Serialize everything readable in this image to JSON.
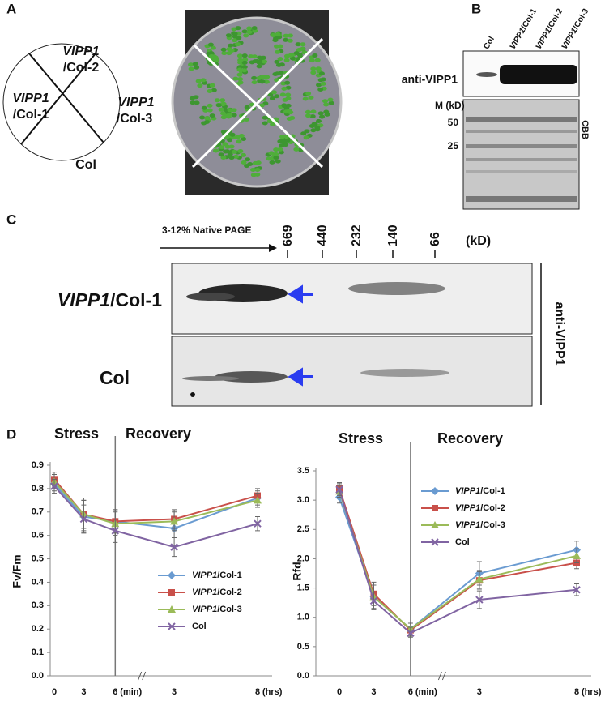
{
  "panel_a": {
    "letter": "A",
    "sectors": [
      {
        "gene": "VIPP1",
        "line": "/Col-2"
      },
      {
        "gene": "VIPP1",
        "line": "/Col-1"
      },
      {
        "gene": "VIPP1",
        "line": "/Col-3"
      },
      {
        "line": "Col"
      }
    ]
  },
  "panel_b": {
    "letter": "B",
    "lanes": [
      "Col",
      "VIPP1/Col-1",
      "VIPP1/Col-2",
      "VIPP1/Col-3"
    ],
    "antibody": "anti-VIPP1",
    "marker_title": "M (kD)",
    "markers": [
      50,
      25
    ],
    "stain": "CBB"
  },
  "panel_c": {
    "letter": "C",
    "gel": "3-12% Native PAGE",
    "markers": [
      669,
      440,
      232,
      140,
      66
    ],
    "unit": "(kD)",
    "rows": [
      "VIPP1/Col-1",
      "Col"
    ],
    "antibody": "anti-VIPP1"
  },
  "panel_d": {
    "letter": "D"
  },
  "chart_data": [
    {
      "type": "line",
      "phases": [
        {
          "label": "Stress",
          "color": "#e0402a"
        },
        {
          "label": "Recovery",
          "color": "#3a3ad8"
        }
      ],
      "categories": [
        "0",
        "3",
        "6",
        "3",
        "8"
      ],
      "x_units": [
        "(min)",
        "(hrs)"
      ],
      "ylabel": "Fv/Fm",
      "ylim": [
        0,
        0.9
      ],
      "yticks": [
        {
          "value": 0,
          "label": "0.0"
        },
        0.1,
        0.2,
        0.3,
        0.4,
        0.5,
        0.6,
        0.7,
        0.8,
        0.9
      ],
      "series": [
        {
          "name": "VIPP1/Col-1",
          "color": "#6a9bd1",
          "marker": "diamond",
          "values": [
            0.82,
            0.68,
            0.66,
            0.63,
            0.76
          ],
          "errors": [
            0.03,
            0.07,
            0.05,
            0.04,
            0.03
          ]
        },
        {
          "name": "VIPP1/Col-2",
          "color": "#c9504a",
          "marker": "square",
          "values": [
            0.84,
            0.69,
            0.66,
            0.67,
            0.77
          ],
          "errors": [
            0.03,
            0.07,
            0.05,
            0.04,
            0.03
          ]
        },
        {
          "name": "VIPP1/Col-3",
          "color": "#9bbb59",
          "marker": "triangle",
          "values": [
            0.83,
            0.69,
            0.65,
            0.66,
            0.75
          ],
          "errors": [
            0.03,
            0.06,
            0.05,
            0.04,
            0.03
          ]
        },
        {
          "name": "Col",
          "color": "#8064a2",
          "marker": "x",
          "values": [
            0.81,
            0.67,
            0.62,
            0.55,
            0.65
          ],
          "errors": [
            0.03,
            0.06,
            0.05,
            0.04,
            0.03
          ]
        }
      ]
    },
    {
      "type": "line",
      "phases": [
        {
          "label": "Stress",
          "color": "#e0402a"
        },
        {
          "label": "Recovery",
          "color": "#3a3ad8"
        }
      ],
      "categories": [
        "0",
        "3",
        "6",
        "3",
        "8"
      ],
      "x_units": [
        "(min)",
        "(hrs)"
      ],
      "ylabel": "Rfd",
      "ylim": [
        0,
        3.5
      ],
      "yticks": [
        {
          "value": 0,
          "label": "0.0"
        },
        0.5,
        {
          "value": 1,
          "label": "1.0"
        },
        1.5,
        {
          "value": 2,
          "label": "2.0"
        },
        2.5,
        {
          "value": 3,
          "label": "3.0"
        },
        3.5
      ],
      "series": [
        {
          "name": "VIPP1/Col-1",
          "color": "#6a9bd1",
          "marker": "diamond",
          "values": [
            3.05,
            1.35,
            0.8,
            1.75,
            2.15
          ],
          "errors": [
            0.1,
            0.2,
            0.12,
            0.2,
            0.15
          ]
        },
        {
          "name": "VIPP1/Col-2",
          "color": "#c9504a",
          "marker": "square",
          "values": [
            3.2,
            1.4,
            0.78,
            1.63,
            1.93
          ],
          "errors": [
            0.1,
            0.2,
            0.12,
            0.15,
            0.1
          ]
        },
        {
          "name": "VIPP1/Col-3",
          "color": "#9bbb59",
          "marker": "triangle",
          "values": [
            3.15,
            1.35,
            0.8,
            1.65,
            2.05
          ],
          "errors": [
            0.1,
            0.2,
            0.12,
            0.15,
            0.12
          ]
        },
        {
          "name": "Col",
          "color": "#8064a2",
          "marker": "x",
          "values": [
            3.18,
            1.28,
            0.73,
            1.3,
            1.47
          ],
          "errors": [
            0.1,
            0.15,
            0.1,
            0.15,
            0.1
          ]
        }
      ]
    }
  ]
}
